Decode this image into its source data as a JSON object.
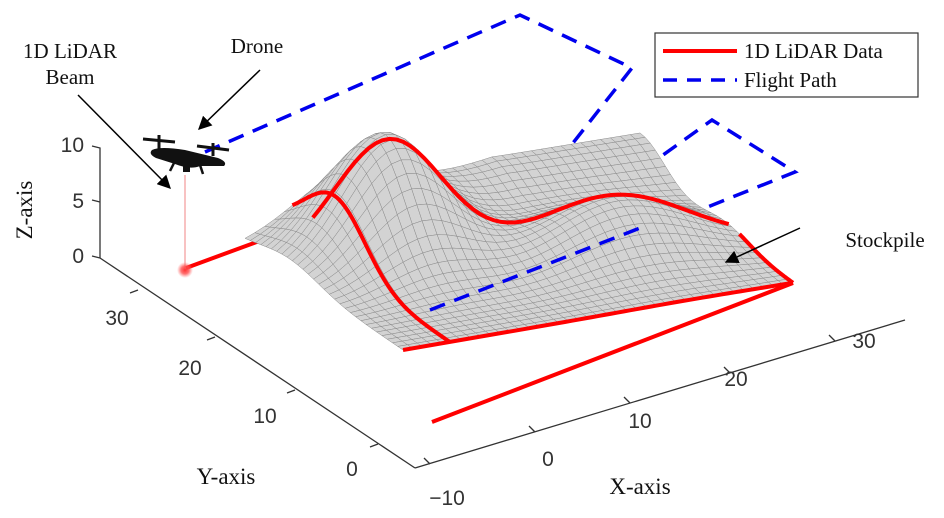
{
  "figure": {
    "annotations": {
      "beam_line1": "1D LiDAR",
      "beam_line2": "Beam",
      "drone": "Drone",
      "stockpile": "Stockpile"
    },
    "legend": {
      "items": [
        {
          "label": "1D LiDAR Data",
          "color": "#ff0000",
          "style": "solid"
        },
        {
          "label": "Flight Path",
          "color": "#0000ee",
          "style": "dashed"
        }
      ]
    },
    "axes": {
      "x": {
        "label": "X-axis",
        "ticks": [
          "−10",
          "0",
          "10",
          "20",
          "30"
        ]
      },
      "y": {
        "label": "Y-axis",
        "ticks": [
          "0",
          "10",
          "20",
          "30"
        ]
      },
      "z": {
        "label": "Z-axis",
        "ticks": [
          "0",
          "5",
          "10"
        ]
      }
    },
    "colors": {
      "surface": "#d3d3d3",
      "grid": "#8a8a8a",
      "lidar": "#ff0000",
      "flight": "#0000ee",
      "beam": "#f4a0a0"
    }
  }
}
